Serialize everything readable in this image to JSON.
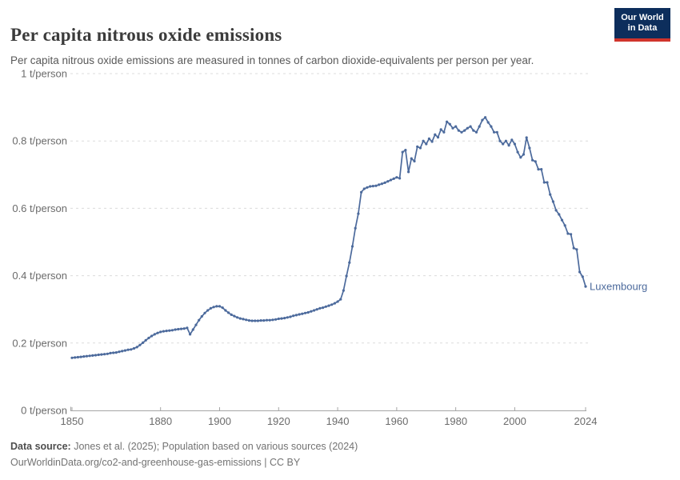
{
  "header": {
    "title": "Per capita nitrous oxide emissions",
    "subtitle": "Per capita nitrous oxide emissions are measured in tonnes of carbon dioxide-equivalents per person per year.",
    "logo_line1": "Our World",
    "logo_line2": "in Data"
  },
  "footer": {
    "source_label": "Data source:",
    "source_text": " Jones et al. (2025); Population based on various sources (2024)",
    "link_line": "OurWorldinData.org/co2-and-greenhouse-gas-emissions | CC BY"
  },
  "colors": {
    "series": "#4c6a9c",
    "grid": "#dcdcdc",
    "axis": "#a5a5a5",
    "tick_text": "#6b6b6b",
    "logo_bg": "#0d2e5c",
    "logo_accent": "#d0342c"
  },
  "chart_data": {
    "type": "line",
    "title": "Per capita nitrous oxide emissions",
    "unit": "t/person",
    "grid": "dashed-horizontal",
    "marker": "dot",
    "xlim": [
      1850,
      2024
    ],
    "ylim": [
      0,
      1
    ],
    "x_ticks": [
      {
        "value": 1850,
        "label": "1850"
      },
      {
        "value": 1880,
        "label": "1880"
      },
      {
        "value": 1900,
        "label": "1900"
      },
      {
        "value": 1920,
        "label": "1920"
      },
      {
        "value": 1940,
        "label": "1940"
      },
      {
        "value": 1960,
        "label": "1960"
      },
      {
        "value": 1980,
        "label": "1980"
      },
      {
        "value": 2000,
        "label": "2000"
      },
      {
        "value": 2024,
        "label": "2024"
      }
    ],
    "y_ticks": [
      {
        "value": 0,
        "label": "0 t/person"
      },
      {
        "value": 0.2,
        "label": "0.2 t/person"
      },
      {
        "value": 0.4,
        "label": "0.4 t/person"
      },
      {
        "value": 0.6,
        "label": "0.6 t/person"
      },
      {
        "value": 0.8,
        "label": "0.8 t/person"
      },
      {
        "value": 1,
        "label": "1 t/person"
      }
    ],
    "year_start": 1850,
    "year_end": 2024,
    "series": [
      {
        "name": "Luxembourg",
        "color": "#4c6a9c",
        "values": [
          0.156,
          0.157,
          0.158,
          0.159,
          0.16,
          0.161,
          0.162,
          0.163,
          0.164,
          0.165,
          0.166,
          0.167,
          0.168,
          0.17,
          0.171,
          0.172,
          0.174,
          0.176,
          0.178,
          0.18,
          0.181,
          0.184,
          0.188,
          0.194,
          0.201,
          0.208,
          0.215,
          0.221,
          0.226,
          0.23,
          0.233,
          0.235,
          0.236,
          0.237,
          0.238,
          0.24,
          0.241,
          0.242,
          0.243,
          0.245,
          0.226,
          0.24,
          0.254,
          0.268,
          0.279,
          0.289,
          0.297,
          0.303,
          0.307,
          0.309,
          0.309,
          0.305,
          0.297,
          0.29,
          0.284,
          0.28,
          0.276,
          0.273,
          0.271,
          0.269,
          0.267,
          0.266,
          0.266,
          0.266,
          0.267,
          0.267,
          0.268,
          0.268,
          0.269,
          0.27,
          0.272,
          0.273,
          0.274,
          0.276,
          0.278,
          0.281,
          0.283,
          0.285,
          0.287,
          0.289,
          0.291,
          0.294,
          0.297,
          0.3,
          0.303,
          0.305,
          0.308,
          0.311,
          0.314,
          0.318,
          0.323,
          0.33,
          0.356,
          0.399,
          0.439,
          0.487,
          0.541,
          0.584,
          0.648,
          0.658,
          0.662,
          0.665,
          0.666,
          0.667,
          0.67,
          0.673,
          0.676,
          0.68,
          0.684,
          0.688,
          0.692,
          0.689,
          0.767,
          0.773,
          0.708,
          0.748,
          0.74,
          0.783,
          0.779,
          0.8,
          0.791,
          0.807,
          0.798,
          0.819,
          0.811,
          0.834,
          0.826,
          0.857,
          0.85,
          0.838,
          0.843,
          0.831,
          0.826,
          0.831,
          0.838,
          0.843,
          0.831,
          0.826,
          0.843,
          0.862,
          0.87,
          0.855,
          0.843,
          0.826,
          0.826,
          0.8,
          0.791,
          0.8,
          0.787,
          0.803,
          0.791,
          0.767,
          0.751,
          0.76,
          0.81,
          0.779,
          0.743,
          0.739,
          0.716,
          0.716,
          0.677,
          0.677,
          0.641,
          0.62,
          0.594,
          0.582,
          0.565,
          0.549,
          0.525,
          0.523,
          0.482,
          0.478,
          0.411,
          0.397,
          0.368
        ]
      }
    ]
  }
}
